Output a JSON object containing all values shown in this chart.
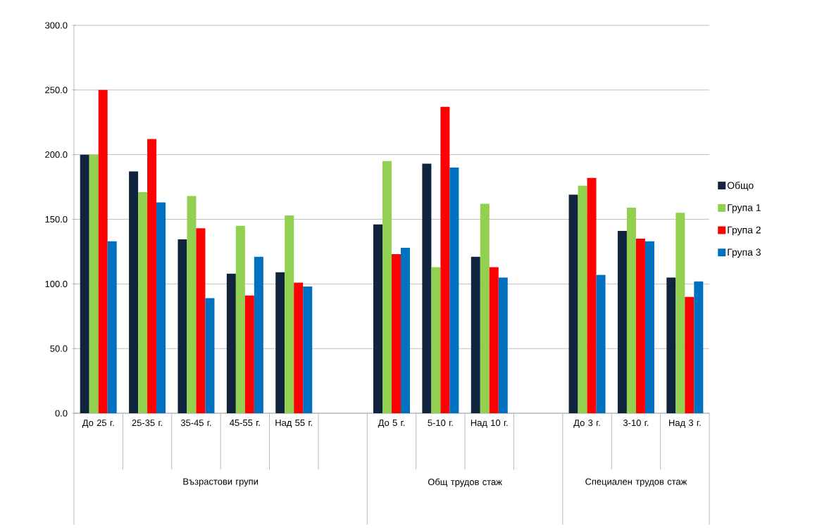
{
  "chart_data": {
    "type": "bar",
    "categories": [
      "До 25 г.",
      "25-35 г.",
      "35-45 г.",
      "45-55 г.",
      "Над 55 г.",
      null,
      "До 5 г.",
      "5-10 г.",
      "Над 10 г.",
      null,
      "До 3 г.",
      "3-10 г.",
      "Над 3 г."
    ],
    "series": [
      {
        "name": "Общо",
        "color": "#10243e",
        "values": [
          200,
          187,
          134.5,
          108,
          109,
          null,
          146,
          193,
          121,
          null,
          169,
          141,
          105
        ]
      },
      {
        "name": "Група 1",
        "color": "#92d050",
        "values": [
          200,
          171,
          168,
          145,
          153,
          null,
          195,
          113,
          162,
          null,
          176,
          159,
          155
        ]
      },
      {
        "name": "Група 2",
        "color": "#ff0000",
        "values": [
          250,
          212,
          143,
          91,
          101,
          null,
          123,
          237,
          113,
          null,
          182,
          135,
          90
        ]
      },
      {
        "name": "Група 3",
        "color": "#0070c0",
        "values": [
          133,
          163,
          89,
          121,
          98,
          null,
          128,
          190,
          105,
          null,
          107,
          133,
          102
        ]
      }
    ],
    "annotations": [
      "Възрастови групи",
      "Общ трудов стаж",
      "Специален трудов стаж"
    ],
    "ylim": [
      0,
      300
    ],
    "yticks": [
      {
        "value": 0,
        "label": "0.0"
      },
      {
        "value": 50,
        "label": "50.0"
      },
      {
        "value": 100,
        "label": "100.0"
      },
      {
        "value": 150,
        "label": "150.0"
      },
      {
        "value": 200,
        "label": "200.0"
      },
      {
        "value": 250,
        "label": "250.0"
      },
      {
        "value": 300,
        "label": "300.0"
      }
    ],
    "grid": "y",
    "legend": "right"
  }
}
